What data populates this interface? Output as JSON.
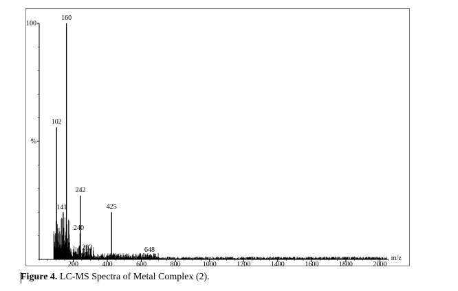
{
  "chart_data": {
    "type": "line",
    "title": "",
    "xlabel": "m/z",
    "ylabel": "%",
    "xlim": [
      0,
      2100
    ],
    "ylim": [
      0,
      100
    ],
    "y_ticks": [
      {
        "value": 100,
        "label": "100"
      },
      {
        "value": 50,
        "label": "%"
      }
    ],
    "x_ticks": [
      200,
      400,
      600,
      800,
      1000,
      1200,
      1400,
      1600,
      1800,
      2000
    ],
    "grid": false,
    "legend": "none",
    "line_color": "#000000",
    "peaks": [
      {
        "mz": 102,
        "intensity": 56,
        "label": "102"
      },
      {
        "mz": 141,
        "intensity": 20,
        "label": "141"
      },
      {
        "mz": 160,
        "intensity": 100,
        "label": "160"
      },
      {
        "mz": 242,
        "intensity": 27,
        "label": "242"
      },
      {
        "mz": 240,
        "intensity": 11,
        "label": "240"
      },
      {
        "mz": 282,
        "intensity": 3,
        "label": "282"
      },
      {
        "mz": 425,
        "intensity": 20,
        "label": "425"
      },
      {
        "mz": 648,
        "intensity": 2,
        "label": "648"
      }
    ]
  },
  "caption": {
    "prefix": "Figure 4.",
    "text": " LC-MS Spectra of Metal Complex (2)."
  }
}
